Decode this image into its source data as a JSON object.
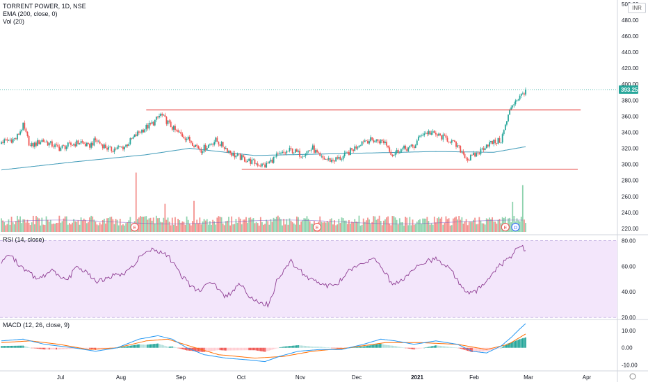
{
  "legend": {
    "title": "TORRENT POWER, 1D, NSE",
    "ema": "EMA (200, close, 0)",
    "vol": "Vol (20)",
    "rsi": "RSI (14, close)",
    "macd": "MACD (12, 26, close, 9)"
  },
  "currency": "INR",
  "colors": {
    "up": "#26a69a",
    "down": "#ef5350",
    "ema": "#3e9ab8",
    "rsi": "#8e3d93",
    "rsi_band": "#f3e6fb",
    "macd_line": "#2196f3",
    "signal_line": "#ff6d00",
    "level_line": "#e53935",
    "price_tag": "#26a69a"
  },
  "chart_data": [
    {
      "type": "candlestick",
      "title": "TORRENT POWER, 1D, NSE",
      "y_ticks": [
        220,
        240,
        260,
        280,
        300,
        320,
        340,
        360,
        380,
        400,
        420,
        440,
        460,
        480,
        500
      ],
      "ylim": [
        213,
        505
      ],
      "last_price": "393.25",
      "x_ticks": [
        "Jul",
        "Aug",
        "Sep",
        "Oct",
        "Nov",
        "Dec",
        "2021",
        "Feb",
        "Mar",
        "Apr"
      ],
      "price_keypoints": [
        [
          0,
          328
        ],
        [
          10,
          332
        ],
        [
          15,
          348
        ],
        [
          20,
          322
        ],
        [
          28,
          330
        ],
        [
          40,
          320
        ],
        [
          55,
          328
        ],
        [
          60,
          322
        ],
        [
          65,
          330
        ],
        [
          75,
          318
        ],
        [
          85,
          322
        ],
        [
          95,
          340
        ],
        [
          105,
          352
        ],
        [
          110,
          362
        ],
        [
          112,
          358
        ],
        [
          120,
          342
        ],
        [
          130,
          330
        ],
        [
          138,
          318
        ],
        [
          148,
          330
        ],
        [
          155,
          320
        ],
        [
          160,
          312
        ],
        [
          170,
          305
        ],
        [
          178,
          300
        ],
        [
          182,
          298
        ],
        [
          190,
          310
        ],
        [
          200,
          318
        ],
        [
          207,
          312
        ],
        [
          215,
          320
        ],
        [
          220,
          308
        ],
        [
          228,
          305
        ],
        [
          235,
          308
        ],
        [
          245,
          322
        ],
        [
          250,
          330
        ],
        [
          258,
          330
        ],
        [
          265,
          328
        ],
        [
          270,
          312
        ],
        [
          275,
          318
        ],
        [
          285,
          322
        ],
        [
          290,
          338
        ],
        [
          295,
          340
        ],
        [
          300,
          337
        ],
        [
          310,
          330
        ],
        [
          318,
          316
        ],
        [
          322,
          306
        ],
        [
          330,
          315
        ],
        [
          335,
          325
        ],
        [
          345,
          330
        ],
        [
          352,
          372
        ],
        [
          355,
          380
        ],
        [
          358,
          384
        ],
        [
          360,
          388
        ],
        [
          362,
          393.25
        ]
      ],
      "ema200": [
        [
          0,
          293
        ],
        [
          50,
          303
        ],
        [
          100,
          312
        ],
        [
          130,
          320
        ],
        [
          175,
          311
        ],
        [
          200,
          312
        ],
        [
          250,
          314
        ],
        [
          300,
          316
        ],
        [
          340,
          315
        ],
        [
          362,
          322
        ]
      ],
      "horizontal_levels": [
        {
          "value": 368,
          "from": 100,
          "to": 400
        },
        {
          "value": 294,
          "from": 166,
          "to": 398
        }
      ]
    },
    {
      "type": "bar",
      "title": "Vol (20)",
      "earnings_markers": [
        {
          "index": 92,
          "label": "E"
        },
        {
          "index": 218,
          "label": "E"
        },
        {
          "index": 348,
          "label": "E"
        },
        {
          "index": 355,
          "label": "D"
        }
      ],
      "spikes": [
        [
          93,
          9.5
        ],
        [
          113,
          4.5
        ],
        [
          133,
          5.0
        ],
        [
          353,
          4.8
        ],
        [
          360,
          7.5
        ]
      ]
    },
    {
      "type": "line",
      "title": "RSI (14, close)",
      "y_ticks": [
        20,
        40,
        60,
        80
      ],
      "ylim": [
        19,
        84
      ],
      "band": [
        20,
        80
      ],
      "values": [
        [
          0,
          62
        ],
        [
          5,
          70
        ],
        [
          15,
          58
        ],
        [
          25,
          50
        ],
        [
          35,
          56
        ],
        [
          45,
          48
        ],
        [
          52,
          60
        ],
        [
          58,
          56
        ],
        [
          65,
          48
        ],
        [
          75,
          52
        ],
        [
          85,
          54
        ],
        [
          95,
          66
        ],
        [
          105,
          74
        ],
        [
          115,
          68
        ],
        [
          125,
          52
        ],
        [
          135,
          40
        ],
        [
          145,
          48
        ],
        [
          155,
          36
        ],
        [
          165,
          46
        ],
        [
          170,
          38
        ],
        [
          178,
          32
        ],
        [
          185,
          30
        ],
        [
          190,
          48
        ],
        [
          200,
          64
        ],
        [
          210,
          52
        ],
        [
          220,
          46
        ],
        [
          230,
          44
        ],
        [
          240,
          56
        ],
        [
          250,
          62
        ],
        [
          258,
          66
        ],
        [
          262,
          60
        ],
        [
          270,
          46
        ],
        [
          280,
          52
        ],
        [
          290,
          62
        ],
        [
          300,
          66
        ],
        [
          310,
          58
        ],
        [
          318,
          44
        ],
        [
          325,
          38
        ],
        [
          333,
          46
        ],
        [
          340,
          56
        ],
        [
          346,
          62
        ],
        [
          352,
          68
        ],
        [
          358,
          76
        ],
        [
          362,
          73
        ]
      ]
    },
    {
      "type": "line",
      "title": "MACD (12, 26, close, 9)",
      "y_ticks": [
        "10.00",
        "0.00",
        "-10.00"
      ],
      "ylim": [
        -13,
        16
      ],
      "macd": [
        [
          0,
          4
        ],
        [
          15,
          5
        ],
        [
          30,
          2
        ],
        [
          50,
          0
        ],
        [
          65,
          -2
        ],
        [
          80,
          0
        ],
        [
          95,
          5
        ],
        [
          108,
          7
        ],
        [
          118,
          5
        ],
        [
          128,
          0
        ],
        [
          140,
          -4
        ],
        [
          155,
          -6
        ],
        [
          170,
          -7
        ],
        [
          182,
          -8
        ],
        [
          192,
          -5
        ],
        [
          205,
          -2
        ],
        [
          220,
          -1
        ],
        [
          235,
          -1
        ],
        [
          250,
          2
        ],
        [
          262,
          5
        ],
        [
          272,
          4
        ],
        [
          285,
          2
        ],
        [
          300,
          4
        ],
        [
          315,
          2
        ],
        [
          325,
          -2
        ],
        [
          335,
          -3
        ],
        [
          345,
          1
        ],
        [
          352,
          6
        ],
        [
          358,
          11
        ],
        [
          362,
          14
        ]
      ],
      "signal": [
        [
          0,
          3
        ],
        [
          20,
          4
        ],
        [
          40,
          2
        ],
        [
          60,
          -1
        ],
        [
          80,
          0
        ],
        [
          100,
          4
        ],
        [
          115,
          5
        ],
        [
          130,
          1
        ],
        [
          150,
          -4
        ],
        [
          175,
          -6
        ],
        [
          195,
          -5
        ],
        [
          215,
          -2
        ],
        [
          240,
          0
        ],
        [
          265,
          3
        ],
        [
          290,
          3
        ],
        [
          315,
          2
        ],
        [
          335,
          -1
        ],
        [
          350,
          2
        ],
        [
          362,
          8
        ]
      ]
    }
  ]
}
